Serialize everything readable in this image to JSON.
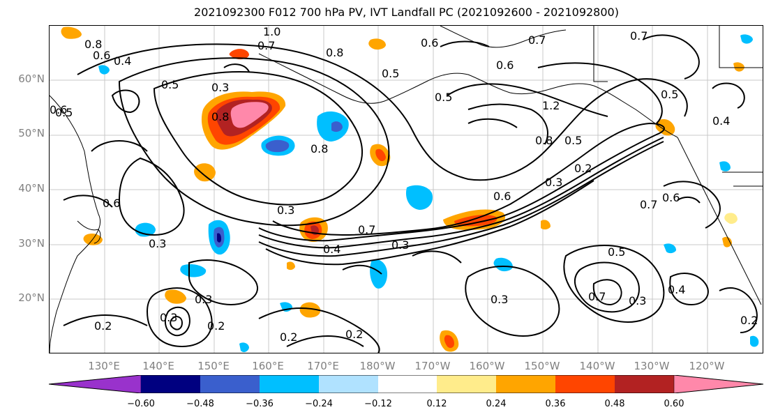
{
  "title": "2021092300 F012 700 hPa PV, IVT Landfall PC (2021092600 - 2021092800)",
  "latitude_labels": [
    "60°N",
    "50°N",
    "40°N",
    "30°N",
    "20°N"
  ],
  "longitude_labels": [
    "130°E",
    "140°E",
    "150°E",
    "160°E",
    "170°E",
    "180°W",
    "170°W",
    "160°W",
    "150°W",
    "140°W",
    "130°W",
    "120°W"
  ],
  "contour_labels": [
    "0.8",
    "0.6",
    "0.4",
    "1.0",
    "0.7",
    "0.8",
    "0.6",
    "0.7",
    "0.6",
    "0.7",
    "0.5",
    "0.3",
    "0.5",
    "0.5",
    "0.8",
    "0.6",
    "0.5",
    "1.2",
    "0.5",
    "0.4",
    "0.8",
    "0.5",
    "0.8",
    "0.2",
    "0.3",
    "0.6",
    "0.6",
    "0.7",
    "0.3",
    "0.7",
    "0.3",
    "0.4",
    "0.3",
    "0.2",
    "0.3",
    "0.3",
    "0.2",
    "0.2",
    "0.3",
    "0.7",
    "0.3",
    "0.4",
    "0.2",
    "0.5",
    "0.2",
    "0.6"
  ],
  "colorbar": {
    "ticks": [
      "−0.60",
      "−0.48",
      "−0.36",
      "−0.24",
      "−0.12",
      "0.12",
      "0.24",
      "0.36",
      "0.48",
      "0.60"
    ],
    "colors": [
      "#9932cc",
      "#000080",
      "#3a5fcd",
      "#00bfff",
      "#b0e2ff",
      "#ffffff",
      "#ffec8b",
      "#ffa500",
      "#ff4500",
      "#b22222",
      "#ff88aa"
    ]
  }
}
